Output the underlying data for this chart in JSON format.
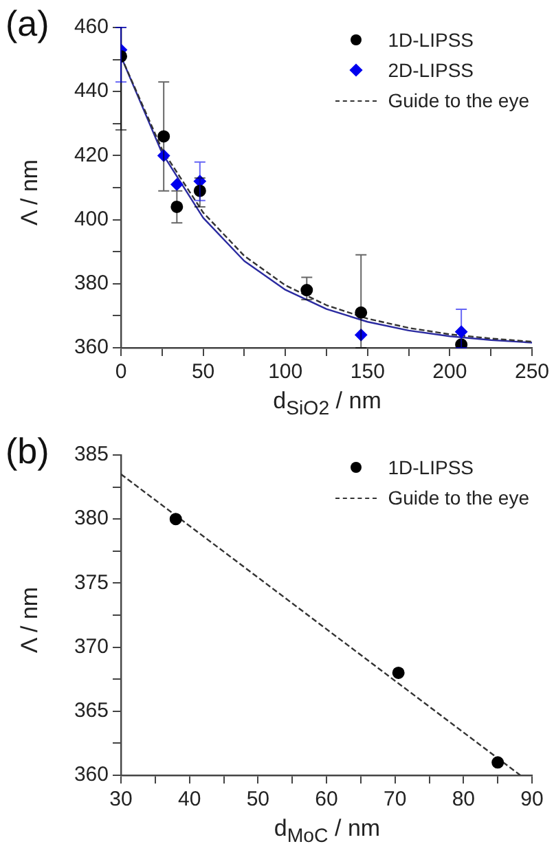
{
  "chart_data": [
    {
      "type": "scatter",
      "title": "(a)",
      "xlabel": "d$_{SiO2}$ / nm",
      "ylabel": "Λ / nm",
      "xlim": [
        0,
        250
      ],
      "ylim": [
        360,
        460
      ],
      "xticks": [
        0,
        {
          "value": 25,
          "label": null
        },
        50,
        {
          "value": 75,
          "label": null
        },
        100,
        {
          "value": 125,
          "label": null
        },
        150,
        {
          "value": 175,
          "label": null
        },
        200,
        {
          "value": 225,
          "label": null
        },
        250
      ],
      "yticks": [
        360,
        {
          "value": 370,
          "label": null
        },
        380,
        {
          "value": 390,
          "label": null
        },
        400,
        {
          "value": 410,
          "label": null
        },
        420,
        {
          "value": 430,
          "label": null
        },
        440,
        {
          "value": 450,
          "label": null
        },
        460
      ],
      "legend": "top right",
      "series": [
        {
          "type": "scatter",
          "name": "1D-LIPSS",
          "color": "#000000",
          "marker": "circle",
          "x": [
            0,
            26,
            34,
            48,
            113,
            146,
            207
          ],
          "values": [
            451,
            426,
            404,
            409,
            378,
            371,
            361
          ],
          "errors": [
            [
              428,
              460
            ],
            [
              409,
              443
            ],
            [
              399,
              409
            ],
            [
              404,
              413
            ],
            [
              375,
              382
            ],
            [
              360,
              389
            ],
            null
          ]
        },
        {
          "type": "scatter",
          "name": "2D-LIPSS",
          "color": "#0000ee",
          "marker": "diamond",
          "x": [
            0,
            26,
            34,
            48,
            146,
            207
          ],
          "values": [
            453,
            420,
            411,
            412,
            364,
            365
          ],
          "errors": [
            [
              443,
              460
            ],
            null,
            null,
            [
              406,
              418
            ],
            null,
            [
              360,
              372
            ]
          ]
        },
        {
          "type": "line",
          "name": "Guide to the eye",
          "color": "#333333",
          "line_style": "dashed",
          "marker": "none",
          "x": [
            0,
            25,
            50,
            75,
            100,
            125,
            150,
            175,
            200,
            225,
            250
          ],
          "values": [
            451,
            421.9,
            402.2,
            388.7,
            379.5,
            373.3,
            369.1,
            366.2,
            364.2,
            362.9,
            361.9
          ]
        },
        {
          "type": "line",
          "color": "#2a2aa0",
          "line_style": "solid",
          "marker": "none",
          "x": [
            0,
            25,
            50,
            75,
            100,
            125,
            150,
            175,
            200,
            225,
            250
          ],
          "values": [
            451,
            420.8,
            400.6,
            387.1,
            378.1,
            372.1,
            368.1,
            365.4,
            363.6,
            362.4,
            361.6
          ]
        }
      ]
    },
    {
      "type": "scatter",
      "title": "(b)",
      "xlabel": "d$_{MoC}$ / nm",
      "ylabel": "Λ / nm",
      "xlim": [
        30,
        90
      ],
      "ylim": [
        360,
        385
      ],
      "xticks": [
        30,
        {
          "value": 35,
          "label": null
        },
        40,
        {
          "value": 45,
          "label": null
        },
        50,
        {
          "value": 55,
          "label": null
        },
        60,
        {
          "value": 65,
          "label": null
        },
        70,
        {
          "value": 75,
          "label": null
        },
        80,
        {
          "value": 85,
          "label": null
        },
        90
      ],
      "yticks": [
        360,
        {
          "value": 362.5,
          "label": null
        },
        365,
        {
          "value": 367.5,
          "label": null
        },
        370,
        {
          "value": 372.5,
          "label": null
        },
        375,
        {
          "value": 377.5,
          "label": null
        },
        380,
        {
          "value": 382.5,
          "label": null
        },
        385
      ],
      "legend": "top right",
      "series": [
        {
          "type": "scatter",
          "name": "1D-LIPSS",
          "color": "#000000",
          "marker": "circle",
          "x": [
            38,
            70.5,
            85
          ],
          "values": [
            380,
            368,
            361
          ]
        },
        {
          "type": "line",
          "name": "Guide to the eye",
          "color": "#333333",
          "line_style": "dashed",
          "marker": "none",
          "x": [
            30,
            88.3
          ],
          "values": [
            383.5,
            360
          ]
        }
      ]
    }
  ]
}
